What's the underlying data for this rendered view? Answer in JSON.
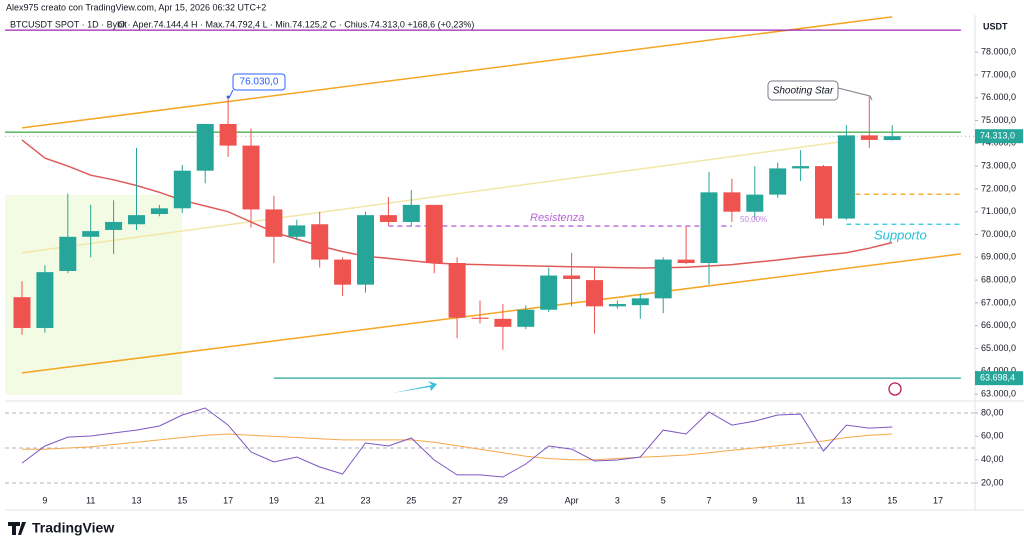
{
  "header": "Alex975 creato con TradingView.com, Apr 15, 2026 06:32 UTC+2",
  "logo": "TradingView",
  "chart_data": {
    "type": "candlestick",
    "symbol": "BTCUSDT SPOT · 1D · Bybit",
    "ohlc_legend": "O · Aper.74.144,4   H · Max.74.792,4   L · Min.74.125,2   C · Chius.74.313,0  +168,6 (+0,23%)",
    "currency": "USDT",
    "categories": [
      null,
      "9",
      null,
      "11",
      null,
      "13",
      null,
      "15",
      null,
      "17",
      null,
      "19",
      null,
      "21",
      null,
      "23",
      null,
      "25",
      null,
      "27",
      null,
      "29",
      null,
      null,
      "Apr",
      null,
      "3",
      null,
      "5",
      null,
      "7",
      null,
      "9",
      null,
      "11",
      null,
      "13",
      null,
      "15",
      null,
      "17",
      null
    ],
    "open": [
      67250,
      65900,
      68400,
      69900,
      70200,
      70450,
      70900,
      71150,
      72800,
      74850,
      73900,
      71100,
      69900,
      70450,
      68900,
      67800,
      70850,
      70550,
      71300,
      68750,
      66350,
      66300,
      65950,
      66700,
      68200,
      68000,
      66850,
      66900,
      67200,
      68900,
      68750,
      71850,
      71000,
      71750,
      72900,
      73000,
      70700,
      74350,
      74144.4,
      null,
      null,
      null
    ],
    "high": [
      67950,
      68650,
      71800,
      71300,
      71500,
      73800,
      71300,
      73050,
      74850,
      76030,
      74650,
      71700,
      70650,
      71000,
      69000,
      71000,
      71650,
      71950,
      71300,
      69000,
      67100,
      66950,
      66900,
      68550,
      69200,
      68550,
      67100,
      67400,
      69000,
      70350,
      72750,
      72450,
      73000,
      73150,
      73700,
      73050,
      74800,
      76050,
      74792.4,
      null,
      null,
      null
    ],
    "low": [
      65600,
      65700,
      68300,
      69000,
      69150,
      70200,
      70800,
      70950,
      72250,
      73400,
      70300,
      68750,
      69750,
      68550,
      67300,
      67450,
      70400,
      70350,
      68300,
      65450,
      66100,
      64950,
      65850,
      66600,
      66850,
      65650,
      66750,
      66300,
      66550,
      68700,
      67800,
      70550,
      70650,
      71600,
      72350,
      70400,
      70650,
      73800,
      74125.2,
      null,
      null,
      null
    ],
    "close": [
      65900,
      68350,
      69900,
      70150,
      70550,
      70850,
      71150,
      72800,
      74850,
      73900,
      71100,
      69900,
      70400,
      68900,
      67800,
      70850,
      70550,
      71300,
      68750,
      66350,
      66300,
      65950,
      66700,
      68200,
      68050,
      66850,
      66950,
      67200,
      68900,
      68750,
      71850,
      71000,
      71750,
      72900,
      73000,
      70700,
      74350,
      74150,
      74313,
      null,
      null,
      null
    ],
    "up_color": "#26a69a",
    "down_color": "#ef5350",
    "series": [
      {
        "color": "#e05a5a",
        "values": [
          74150,
          73350,
          73000,
          72600,
          72400,
          72150,
          71850,
          71500,
          71250,
          71000,
          70550,
          70100,
          69800,
          69500,
          69250,
          69050,
          68950,
          68850,
          68750,
          68700,
          68680,
          68650,
          68630,
          68610,
          68590,
          68570,
          68550,
          68530,
          68540,
          68560,
          68620,
          68680,
          68780,
          68880,
          69000,
          69100,
          69200,
          69400,
          69650,
          null,
          null,
          null
        ]
      }
    ],
    "ylim": [
      62740,
      79630
    ],
    "yticks": [
      {
        "value": 63000,
        "label": "63.000,0"
      },
      {
        "value": 64000,
        "label": "64.000,0"
      },
      {
        "value": 65000,
        "label": "65.000,0"
      },
      {
        "value": 66000,
        "label": "66.000,0"
      },
      {
        "value": 67000,
        "label": "67.000,0"
      },
      {
        "value": 68000,
        "label": "68.000,0"
      },
      {
        "value": 69000,
        "label": "69.000,0"
      },
      {
        "value": 70000,
        "label": "70.000,0"
      },
      {
        "value": 71000,
        "label": "71.000,0"
      },
      {
        "value": 72000,
        "label": "72.000,0"
      },
      {
        "value": 73000,
        "label": "73.000,0"
      },
      {
        "value": 74000,
        "label": "74.000,0"
      },
      {
        "value": 75000,
        "label": "75.000,0"
      },
      {
        "value": 76000,
        "label": "76.000,0"
      },
      {
        "value": 77000,
        "label": "77.000,0"
      },
      {
        "value": 78000,
        "label": "78.000,0"
      }
    ],
    "last_price": {
      "value": 74313,
      "label": "74.313,0",
      "color": "#26a69a"
    },
    "levels": [
      {
        "value": 74490,
        "color": "#4caf50",
        "x": [
          -1,
          41
        ],
        "dash": false
      },
      {
        "value": 78965,
        "color": "#9c27b0",
        "x": [
          -1,
          41
        ],
        "dash": false
      },
      {
        "value": 70370,
        "color": "#b566d6",
        "x": [
          16,
          31
        ],
        "dash": true
      },
      {
        "value": 70450,
        "color": "#26c6da",
        "x": [
          36,
          41
        ],
        "dash": true
      },
      {
        "value": 71770,
        "color": "#f5a623",
        "x": [
          36,
          41
        ],
        "dash": true
      },
      {
        "value": 63698.4,
        "color": "#26a69a",
        "x": [
          11,
          41
        ],
        "dash": false,
        "label": "63.698,4"
      }
    ],
    "trend_lines": [
      {
        "x": [
          0,
          38
        ],
        "y": [
          74680,
          79550
        ],
        "color": "#f5a623"
      },
      {
        "x": [
          0,
          41
        ],
        "y": [
          63930,
          69150
        ],
        "color": "#f5a623"
      },
      {
        "x": [
          0,
          36
        ],
        "y": [
          69200,
          74100
        ],
        "color": "#f3e7a8"
      }
    ],
    "annotations": {
      "high": {
        "value": 76030,
        "label": "76.030,0"
      },
      "shooting_star": "Shooting Star",
      "resistance": "Resistenza",
      "fib": "50,00%",
      "support": "Supporto"
    },
    "rsi": {
      "ylim": [
        9.7,
        86.9
      ],
      "yticks": [
        {
          "value": 20,
          "label": "20,00"
        },
        {
          "value": 40,
          "label": "40,00"
        },
        {
          "value": 60,
          "label": "60,00"
        },
        {
          "value": 80,
          "label": "80,00"
        }
      ],
      "bands": [
        80,
        50,
        20
      ],
      "color": "#7e57c2",
      "values": [
        37.1,
        51.7,
        59.4,
        60.3,
        62.9,
        65.4,
        68.9,
        78.3,
        84.3,
        69.7,
        46.6,
        38.0,
        42.3,
        33.7,
        27.7,
        54.3,
        51.7,
        58.6,
        39.7,
        26.9,
        26.9,
        25.1,
        36.3,
        51.7,
        49.1,
        38.9,
        39.7,
        42.3,
        65.4,
        62.0,
        80.9,
        69.7,
        73.1,
        78.3,
        79.1,
        47.4,
        69.7,
        67.1,
        68.0,
        null,
        null,
        null
      ],
      "ma_color": "#f7a94b",
      "ma_values": [
        49,
        49,
        50,
        51,
        53,
        55,
        57,
        59,
        61,
        62,
        61,
        60,
        59,
        58,
        57,
        57,
        57,
        57,
        55,
        52,
        49,
        46,
        43,
        41,
        40,
        40,
        41,
        42,
        43,
        44,
        46,
        48,
        50,
        52,
        54,
        56,
        59,
        61,
        62,
        null,
        null,
        null
      ]
    }
  }
}
